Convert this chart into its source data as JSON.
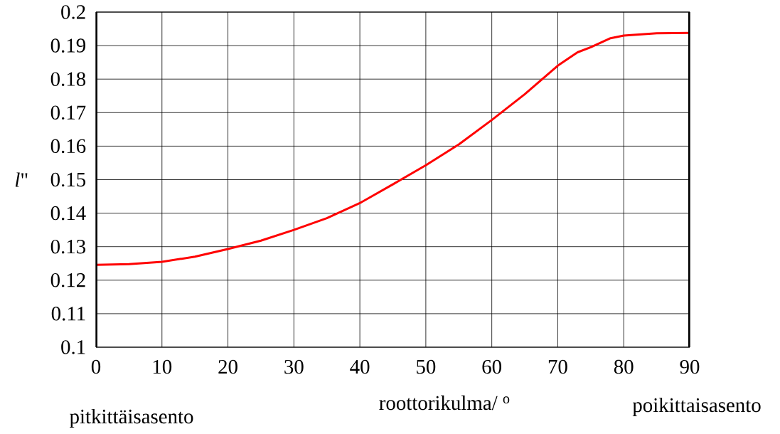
{
  "chart_data": {
    "type": "line",
    "xlabel": "roottorikulma/ $^{o}$",
    "ylabel": "*l*\"",
    "annotations": [
      "pitkittäisasento",
      "poikittaisasento"
    ],
    "x": [
      0,
      5,
      10,
      15,
      20,
      25,
      30,
      35,
      40,
      45,
      50,
      55,
      60,
      65,
      70,
      73,
      75,
      78,
      80,
      85,
      90
    ],
    "series": [
      {
        "color": "#ff0000",
        "values": [
          0.1246,
          0.1248,
          0.1255,
          0.127,
          0.1293,
          0.1318,
          0.135,
          0.1385,
          0.143,
          0.1486,
          0.1543,
          0.1605,
          0.1678,
          0.1755,
          0.184,
          0.188,
          0.1895,
          0.1922,
          0.193,
          0.1937,
          0.1938
        ]
      }
    ],
    "xlim": [
      0,
      90
    ],
    "xticks": [
      0,
      10,
      20,
      30,
      40,
      50,
      60,
      70,
      80,
      90
    ],
    "ylim": [
      0.1,
      0.2
    ],
    "yticks": [
      0.1,
      0.11,
      0.12,
      0.13,
      0.14,
      0.15,
      0.16,
      0.17,
      0.18,
      0.19,
      0.2
    ],
    "grid": true,
    "marker": "none",
    "line_style": "solid"
  }
}
